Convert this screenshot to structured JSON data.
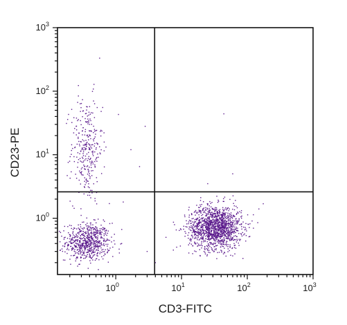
{
  "chart_data": {
    "type": "scatter",
    "title": "",
    "xlabel": "CD3-FITC",
    "ylabel": "CD23-PE",
    "x_scale": "log",
    "y_scale": "log",
    "xlim": [
      0.13,
      1000
    ],
    "ylim": [
      0.13,
      1000
    ],
    "x_ticks": [
      {
        "base": "10",
        "exp": "0",
        "value": 1
      },
      {
        "base": "10",
        "exp": "1",
        "value": 10
      },
      {
        "base": "10",
        "exp": "2",
        "value": 100
      },
      {
        "base": "10",
        "exp": "3",
        "value": 1000
      }
    ],
    "y_ticks": [
      {
        "base": "10",
        "exp": "0",
        "value": 1
      },
      {
        "base": "10",
        "exp": "1",
        "value": 10
      },
      {
        "base": "10",
        "exp": "2",
        "value": 100
      },
      {
        "base": "10",
        "exp": "3",
        "value": 1000
      }
    ],
    "quadrant_gates": {
      "x": 3.9,
      "y": 2.6
    },
    "grid": false,
    "point_color": "#5b1a8c",
    "clusters": [
      {
        "center": [
          0.38,
          0.42
        ],
        "spread": [
          0.17,
          0.15
        ],
        "count": 650
      },
      {
        "center": [
          0.36,
          12.0
        ],
        "spread": [
          0.12,
          0.42
        ],
        "count": 300
      },
      {
        "center": [
          33.0,
          0.72
        ],
        "spread": [
          0.2,
          0.17
        ],
        "count": 1400
      }
    ],
    "outliers": [
      [
        1.7,
        12.0
      ],
      [
        2.3,
        6.5
      ],
      [
        2.8,
        28.0
      ],
      [
        0.6,
        48.0
      ],
      [
        1.1,
        43.0
      ],
      [
        44.0,
        44.0
      ],
      [
        17.0,
        1.6
      ],
      [
        4.0,
        0.2
      ],
      [
        3.0,
        0.3
      ],
      [
        0.16,
        0.22
      ],
      [
        0.17,
        0.5
      ],
      [
        1.3,
        1.8
      ],
      [
        0.8,
        1.7
      ],
      [
        22.0,
        0.3
      ],
      [
        25.0,
        3.5
      ],
      [
        60.0,
        5.0
      ],
      [
        0.25,
        28.0
      ],
      [
        0.9,
        0.25
      ],
      [
        5.8,
        0.5
      ],
      [
        150.0,
        1.4
      ]
    ]
  }
}
